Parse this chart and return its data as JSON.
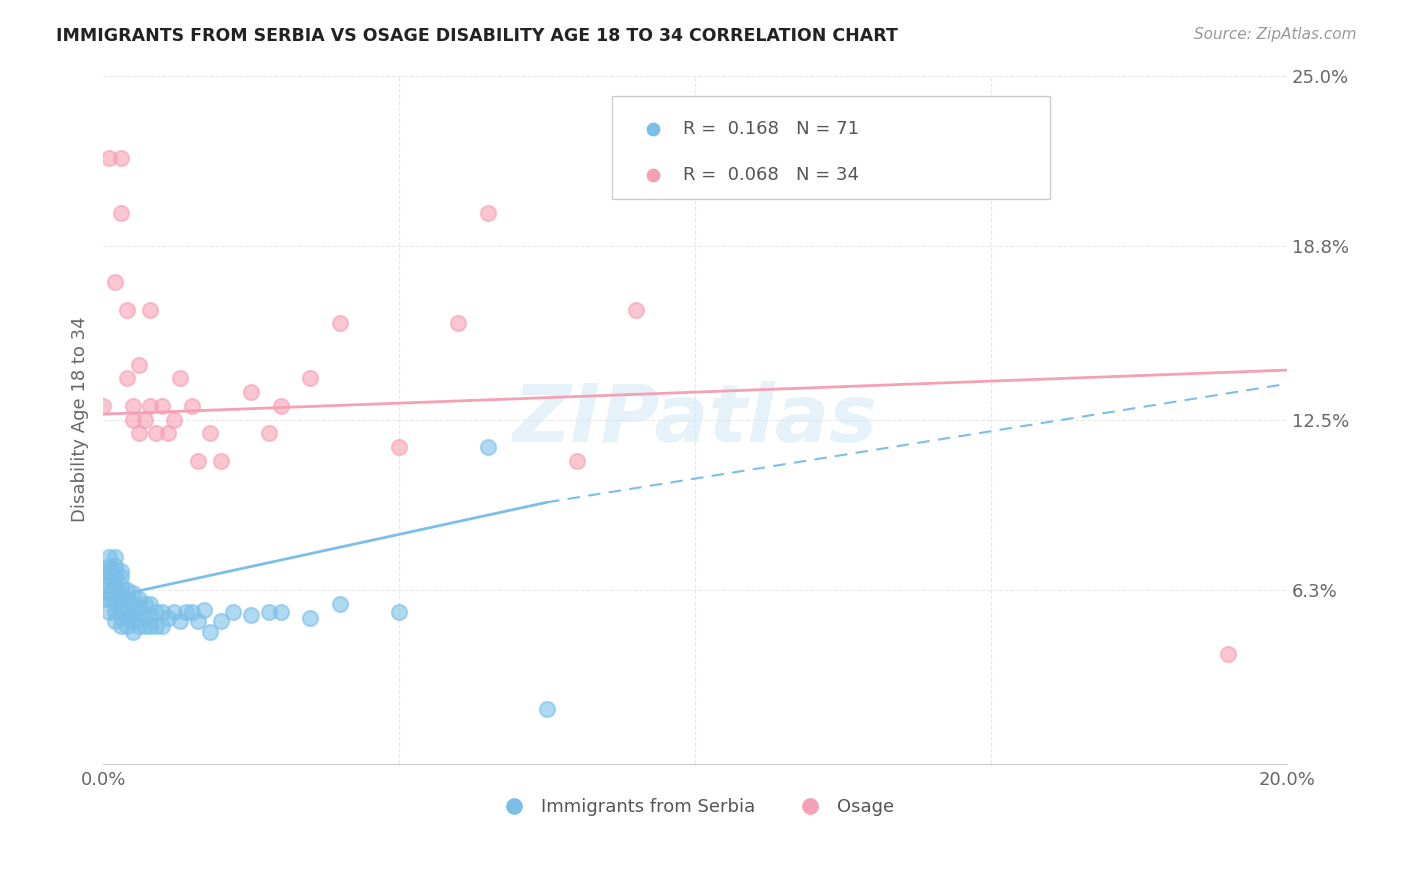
{
  "title": "IMMIGRANTS FROM SERBIA VS OSAGE DISABILITY AGE 18 TO 34 CORRELATION CHART",
  "source": "Source: ZipAtlas.com",
  "ylabel": "Disability Age 18 to 34",
  "xlim": [
    0.0,
    0.2
  ],
  "ylim": [
    0.0,
    0.25
  ],
  "xticks": [
    0.0,
    0.05,
    0.1,
    0.15,
    0.2
  ],
  "xticklabels": [
    "0.0%",
    "",
    "",
    "",
    "20.0%"
  ],
  "yticks": [
    0.0,
    0.063,
    0.125,
    0.188,
    0.25
  ],
  "yticklabels": [
    "",
    "6.3%",
    "12.5%",
    "18.8%",
    "25.0%"
  ],
  "legend_r1": "R =  0.168",
  "legend_n1": "N = 71",
  "legend_r2": "R =  0.068",
  "legend_n2": "N = 34",
  "series1_color": "#7bbfe8",
  "series2_color": "#f5a0b5",
  "series1_label": "Immigrants from Serbia",
  "series2_label": "Osage",
  "serbia_x": [
    0.0,
    0.0,
    0.0,
    0.001,
    0.001,
    0.001,
    0.001,
    0.001,
    0.001,
    0.001,
    0.001,
    0.002,
    0.002,
    0.002,
    0.002,
    0.002,
    0.002,
    0.002,
    0.002,
    0.002,
    0.002,
    0.003,
    0.003,
    0.003,
    0.003,
    0.003,
    0.003,
    0.003,
    0.003,
    0.004,
    0.004,
    0.004,
    0.004,
    0.004,
    0.005,
    0.005,
    0.005,
    0.005,
    0.005,
    0.006,
    0.006,
    0.006,
    0.006,
    0.007,
    0.007,
    0.007,
    0.008,
    0.008,
    0.008,
    0.009,
    0.009,
    0.01,
    0.01,
    0.011,
    0.012,
    0.013,
    0.014,
    0.015,
    0.016,
    0.017,
    0.018,
    0.02,
    0.022,
    0.025,
    0.028,
    0.03,
    0.035,
    0.04,
    0.05,
    0.065,
    0.075
  ],
  "serbia_y": [
    0.06,
    0.065,
    0.07,
    0.055,
    0.06,
    0.062,
    0.065,
    0.068,
    0.07,
    0.072,
    0.075,
    0.052,
    0.055,
    0.058,
    0.06,
    0.063,
    0.065,
    0.068,
    0.07,
    0.072,
    0.075,
    0.05,
    0.053,
    0.056,
    0.059,
    0.062,
    0.065,
    0.068,
    0.07,
    0.05,
    0.053,
    0.056,
    0.06,
    0.063,
    0.048,
    0.052,
    0.055,
    0.058,
    0.062,
    0.05,
    0.053,
    0.057,
    0.06,
    0.05,
    0.053,
    0.058,
    0.05,
    0.054,
    0.058,
    0.05,
    0.055,
    0.05,
    0.055,
    0.053,
    0.055,
    0.052,
    0.055,
    0.055,
    0.052,
    0.056,
    0.048,
    0.052,
    0.055,
    0.054,
    0.055,
    0.055,
    0.053,
    0.058,
    0.055,
    0.115,
    0.02
  ],
  "osage_x": [
    0.0,
    0.001,
    0.002,
    0.003,
    0.003,
    0.004,
    0.004,
    0.005,
    0.005,
    0.006,
    0.006,
    0.007,
    0.008,
    0.008,
    0.009,
    0.01,
    0.011,
    0.012,
    0.013,
    0.015,
    0.016,
    0.018,
    0.02,
    0.025,
    0.028,
    0.03,
    0.035,
    0.04,
    0.05,
    0.06,
    0.065,
    0.08,
    0.09,
    0.19
  ],
  "osage_y": [
    0.13,
    0.22,
    0.175,
    0.2,
    0.22,
    0.14,
    0.165,
    0.125,
    0.13,
    0.12,
    0.145,
    0.125,
    0.13,
    0.165,
    0.12,
    0.13,
    0.12,
    0.125,
    0.14,
    0.13,
    0.11,
    0.12,
    0.11,
    0.135,
    0.12,
    0.13,
    0.14,
    0.16,
    0.115,
    0.16,
    0.2,
    0.11,
    0.165,
    0.04
  ],
  "trend1_x0": 0.0,
  "trend1_x1": 0.075,
  "trend1_y0": 0.06,
  "trend1_y1": 0.095,
  "trend1_dash_x0": 0.075,
  "trend1_dash_x1": 0.2,
  "trend1_dash_y0": 0.095,
  "trend1_dash_y1": 0.138,
  "trend2_x0": 0.0,
  "trend2_x1": 0.2,
  "trend2_y0": 0.127,
  "trend2_y1": 0.143,
  "background_color": "#ffffff",
  "grid_color": "#e8e8e8"
}
